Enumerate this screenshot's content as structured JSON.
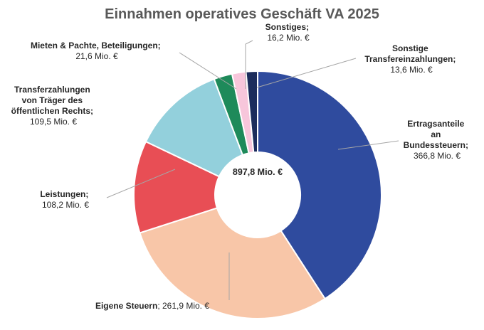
{
  "chart_data": {
    "type": "pie",
    "variant": "donut",
    "title": "Einnahmen operatives Geschäft VA 2025",
    "center_label": "897,8 Mio. €",
    "total": 897.8,
    "unit": "Mio. €",
    "legend": "none (data labels with leader lines)",
    "slices": [
      {
        "label": "Ertragsanteile an Bundessteuern",
        "value": 366.8,
        "value_label": "366,8 Mio. €",
        "color": "#2F4B9E"
      },
      {
        "label": "Eigene Steuern",
        "value": 261.9,
        "value_label": "261,9 Mio. €",
        "color": "#F8C6A8"
      },
      {
        "label": "Leistungen",
        "value": 108.2,
        "value_label": "108,2 Mio. €",
        "color": "#E84E55"
      },
      {
        "label": "Transferzahlungen von Träger des öffentlichen Rechts",
        "value": 109.5,
        "value_label": "109,5 Mio. €",
        "color": "#93D0DC"
      },
      {
        "label": "Mieten & Pachte, Beteiligungen",
        "value": 21.6,
        "value_label": "21,6 Mio. €",
        "color": "#1E8A5A"
      },
      {
        "label": "Sonstiges",
        "value": 16.2,
        "value_label": "16,2 Mio. €",
        "color": "#F7C6DB"
      },
      {
        "label": "Sonstige Transfereinzahlungen",
        "value": 13.6,
        "value_label": "13,6 Mio. €",
        "color": "#1C2D5C"
      }
    ]
  }
}
